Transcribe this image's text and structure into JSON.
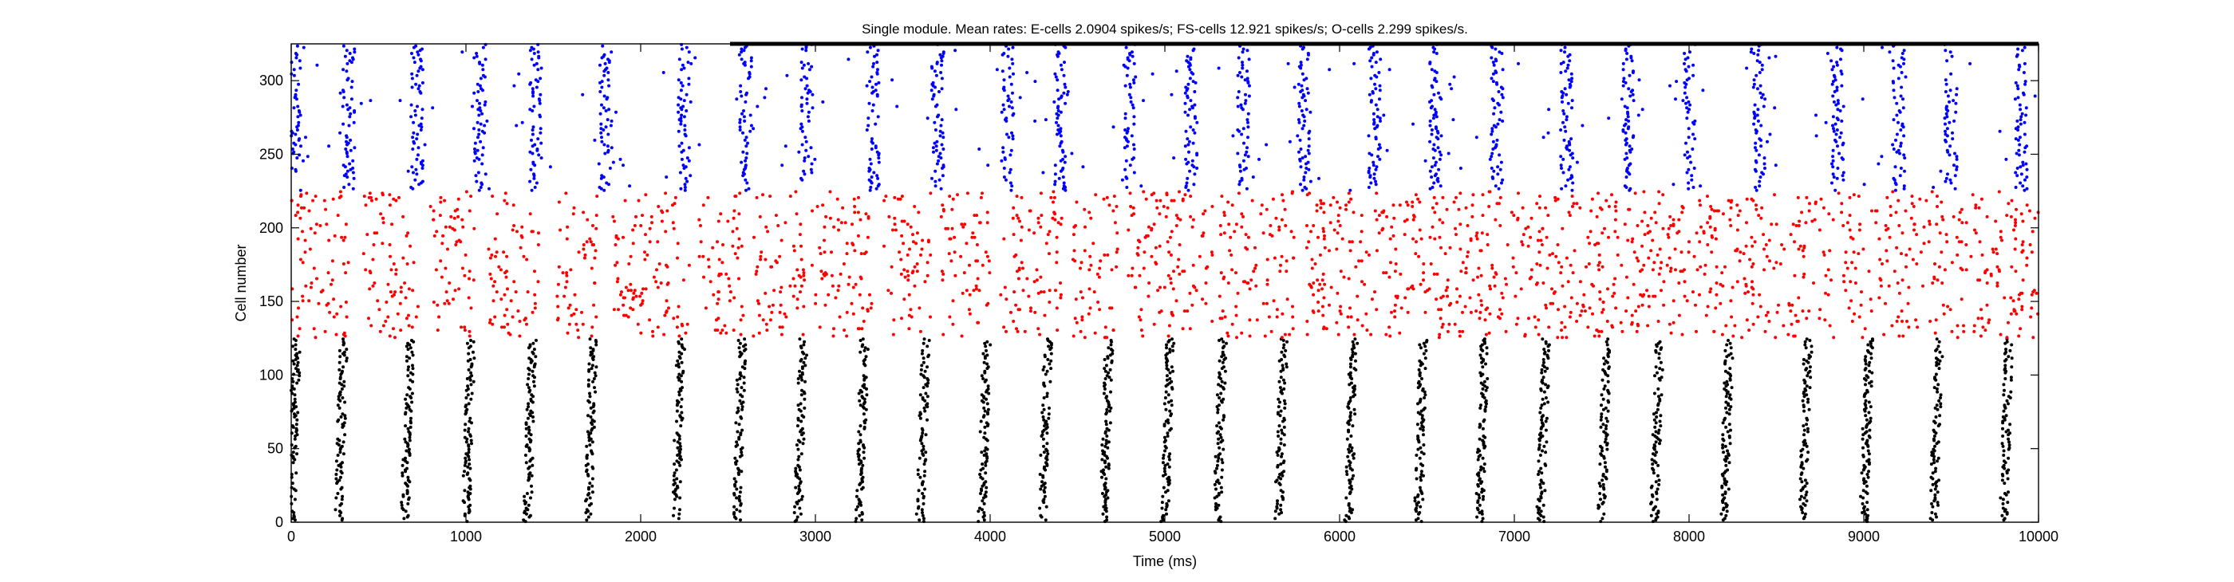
{
  "chart_data": {
    "type": "scatter",
    "title": "Single module. Mean rates: E-cells 2.0904 spikes/s; FS-cells 12.921 spikes/s; O-cells 2.299 spikes/s.",
    "xlabel": "Time (ms)",
    "ylabel": "Cell number",
    "xlim": [
      0,
      10000
    ],
    "ylim": [
      0,
      325
    ],
    "xticks": [
      0,
      1000,
      2000,
      3000,
      4000,
      5000,
      6000,
      7000,
      8000,
      9000,
      10000
    ],
    "yticks": [
      0,
      50,
      100,
      150,
      200,
      250,
      300
    ],
    "grid": false,
    "legend": "none",
    "series": [
      {
        "cells": [
          0,
          125
        ],
        "color": "#000000",
        "mean_rate_spikes_per_s": 2.0904,
        "burst_times_ms": [
          0,
          270,
          650,
          1000,
          1350,
          1700,
          2200,
          2550,
          2900,
          3250,
          3600,
          3950,
          4300,
          4650,
          5000,
          5300,
          5650,
          6050,
          6450,
          6800,
          7150,
          7500,
          7800,
          8200,
          8650,
          9000,
          9400,
          9800
        ]
      },
      {
        "cells": [
          125,
          225
        ],
        "color": "#ff0000",
        "mean_rate_spikes_per_s": 12.921,
        "active_intervals_ms": [
          [
            0,
            330
          ],
          [
            410,
            730
          ],
          [
            790,
            1050
          ],
          [
            1130,
            1420
          ],
          [
            1520,
            1760
          ],
          [
            1840,
            2280
          ],
          [
            2330,
            2590
          ],
          [
            2640,
            2940
          ],
          [
            2980,
            3330
          ],
          [
            3390,
            3660
          ],
          [
            3720,
            4000
          ],
          [
            4060,
            4410
          ],
          [
            4470,
            4730
          ],
          [
            4790,
            5280
          ],
          [
            5310,
            5740
          ],
          [
            5810,
            10000
          ]
        ]
      },
      {
        "cells": [
          225,
          325
        ],
        "color": "#0000ff",
        "mean_rate_spikes_per_s": 2.299,
        "burst_times_ms": [
          20,
          330,
          720,
          1080,
          1400,
          1800,
          2250,
          2600,
          2950,
          3330,
          3700,
          4100,
          4400,
          4800,
          5150,
          5450,
          5800,
          6200,
          6550,
          6900,
          7300,
          7650,
          8000,
          8400,
          8850,
          9200,
          9500,
          9900
        ]
      }
    ]
  }
}
